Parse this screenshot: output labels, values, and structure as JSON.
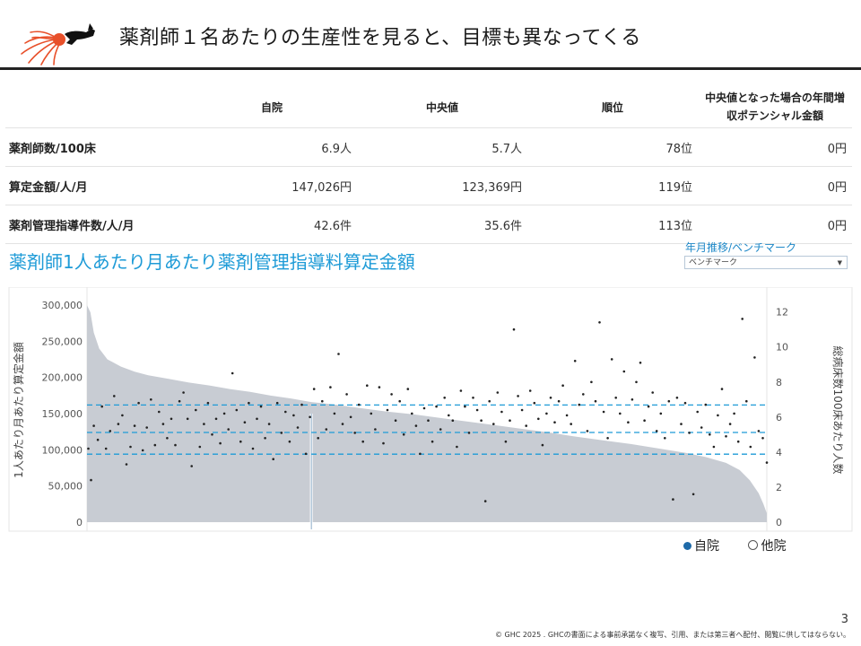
{
  "header": {
    "title": "薬剤師１名あたりの生産性を見ると、目標も異なってくる",
    "logo_icon": "dog-with-yarn-logo"
  },
  "table": {
    "columns": [
      "",
      "自院",
      "中央値",
      "順位",
      "中央値となった場合の年間増",
      "収ポテンシャル金額"
    ],
    "rows": [
      {
        "label": "薬剤師数/100床",
        "self": "6.9人",
        "median": "5.7人",
        "rank": "78位",
        "potential": "0円"
      },
      {
        "label": "算定金額/人/月",
        "self": "147,026円",
        "median": "123,369円",
        "rank": "119位",
        "potential": "0円"
      },
      {
        "label": "薬剤管理指導件数/人/月",
        "self": "42.6件",
        "median": "35.6件",
        "rank": "113位",
        "potential": "0円"
      }
    ]
  },
  "chart_title": "薬剤師1人あたり月あたり薬剤管理指導料算定金額",
  "selector": {
    "label": "年月推移/ベンチマーク",
    "value": "ベンチマーク"
  },
  "chart_data": {
    "type": "scatter",
    "ylabel": "1人あたり月あたり算定金額",
    "y2label": "総病床数100床あたり人数",
    "ylim": [
      0,
      310000
    ],
    "y2lim": [
      0,
      12.8
    ],
    "yticks": [
      "300,000",
      "250,000",
      "200,000",
      "150,000",
      "100,000",
      "50,000",
      "0"
    ],
    "y2ticks": [
      "12",
      "10",
      "8",
      "6",
      "4",
      "2",
      "0"
    ],
    "reference_lines": [
      162000,
      124000,
      94000
    ],
    "area_profile": [
      [
        0,
        300000
      ],
      [
        0.5,
        290000
      ],
      [
        1,
        262000
      ],
      [
        1.8,
        240000
      ],
      [
        3,
        225000
      ],
      [
        5,
        215000
      ],
      [
        7,
        208000
      ],
      [
        9,
        203000
      ],
      [
        12,
        198000
      ],
      [
        15,
        193000
      ],
      [
        18,
        189000
      ],
      [
        21,
        184000
      ],
      [
        24,
        180000
      ],
      [
        27,
        175000
      ],
      [
        30,
        171000
      ],
      [
        33,
        166000
      ],
      [
        36,
        163000
      ],
      [
        40,
        158000
      ],
      [
        44,
        153000
      ],
      [
        48,
        149000
      ],
      [
        52,
        144000
      ],
      [
        56,
        139000
      ],
      [
        60,
        134000
      ],
      [
        64,
        129000
      ],
      [
        68,
        124000
      ],
      [
        72,
        118000
      ],
      [
        76,
        113000
      ],
      [
        80,
        108000
      ],
      [
        84,
        102000
      ],
      [
        88,
        96000
      ],
      [
        91,
        90000
      ],
      [
        94,
        82000
      ],
      [
        96,
        72000
      ],
      [
        97.5,
        58000
      ],
      [
        98.8,
        40000
      ],
      [
        99.5,
        25000
      ],
      [
        100,
        12000
      ]
    ],
    "highlight_x": 33,
    "self_label": "自院",
    "other_label": "他院",
    "points_y2": [
      [
        0.2,
        4.2
      ],
      [
        0.6,
        2.4
      ],
      [
        1,
        5.5
      ],
      [
        1.6,
        4.7
      ],
      [
        2.2,
        6.6
      ],
      [
        2.8,
        4.2
      ],
      [
        3.4,
        5.2
      ],
      [
        4,
        7.2
      ],
      [
        4.6,
        5.6
      ],
      [
        5.2,
        6.1
      ],
      [
        5.8,
        3.3
      ],
      [
        6.4,
        4.3
      ],
      [
        7,
        5.5
      ],
      [
        7.6,
        6.8
      ],
      [
        8.2,
        4.1
      ],
      [
        8.8,
        5.4
      ],
      [
        9.4,
        7.0
      ],
      [
        10,
        4.4
      ],
      [
        10.6,
        6.3
      ],
      [
        11.2,
        5.6
      ],
      [
        11.8,
        4.8
      ],
      [
        12.4,
        5.9
      ],
      [
        13,
        4.4
      ],
      [
        13.6,
        6.9
      ],
      [
        14.2,
        7.4
      ],
      [
        14.8,
        5.9
      ],
      [
        15.4,
        3.2
      ],
      [
        16,
        6.4
      ],
      [
        16.6,
        4.3
      ],
      [
        17.2,
        5.6
      ],
      [
        17.8,
        6.8
      ],
      [
        18.4,
        5.0
      ],
      [
        19,
        5.9
      ],
      [
        19.6,
        4.5
      ],
      [
        20.2,
        6.2
      ],
      [
        20.8,
        5.3
      ],
      [
        21.4,
        8.5
      ],
      [
        22,
        6.4
      ],
      [
        22.6,
        4.6
      ],
      [
        23.2,
        5.7
      ],
      [
        23.8,
        6.8
      ],
      [
        24.4,
        4.2
      ],
      [
        25,
        5.9
      ],
      [
        25.6,
        6.6
      ],
      [
        26.2,
        4.8
      ],
      [
        26.8,
        5.6
      ],
      [
        27.4,
        3.6
      ],
      [
        28,
        6.8
      ],
      [
        28.6,
        5.1
      ],
      [
        29.2,
        6.3
      ],
      [
        29.8,
        4.6
      ],
      [
        30.4,
        6.1
      ],
      [
        31,
        5.4
      ],
      [
        31.6,
        6.7
      ],
      [
        32.2,
        3.9
      ],
      [
        32.8,
        6.0
      ],
      [
        33.4,
        7.6
      ],
      [
        34,
        4.8
      ],
      [
        34.6,
        6.9
      ],
      [
        35.2,
        5.3
      ],
      [
        35.8,
        7.7
      ],
      [
        36.4,
        6.2
      ],
      [
        37,
        9.6
      ],
      [
        37.6,
        5.6
      ],
      [
        38.2,
        7.3
      ],
      [
        38.8,
        6.0
      ],
      [
        39.4,
        5.1
      ],
      [
        40,
        6.7
      ],
      [
        40.6,
        4.6
      ],
      [
        41.2,
        7.8
      ],
      [
        41.8,
        6.2
      ],
      [
        42.4,
        5.3
      ],
      [
        43,
        7.7
      ],
      [
        43.6,
        4.5
      ],
      [
        44.2,
        6.4
      ],
      [
        44.8,
        7.3
      ],
      [
        45.4,
        5.8
      ],
      [
        46,
        6.9
      ],
      [
        46.6,
        5.0
      ],
      [
        47.2,
        7.6
      ],
      [
        47.8,
        6.2
      ],
      [
        48.4,
        5.5
      ],
      [
        49,
        3.9
      ],
      [
        49.6,
        6.5
      ],
      [
        50.2,
        5.8
      ],
      [
        50.8,
        4.6
      ],
      [
        51.4,
        6.6
      ],
      [
        52,
        5.3
      ],
      [
        52.6,
        7.1
      ],
      [
        53.2,
        6.1
      ],
      [
        53.8,
        5.8
      ],
      [
        54.4,
        4.3
      ],
      [
        55,
        7.5
      ],
      [
        55.6,
        6.6
      ],
      [
        56.2,
        5.1
      ],
      [
        56.8,
        7.1
      ],
      [
        57.4,
        6.4
      ],
      [
        58,
        5.8
      ],
      [
        58.6,
        1.2
      ],
      [
        59.2,
        6.9
      ],
      [
        59.8,
        5.6
      ],
      [
        60.4,
        7.4
      ],
      [
        61,
        6.3
      ],
      [
        61.6,
        4.6
      ],
      [
        62.2,
        5.8
      ],
      [
        62.8,
        11.0
      ],
      [
        63.4,
        7.2
      ],
      [
        64,
        6.4
      ],
      [
        64.6,
        5.5
      ],
      [
        65.2,
        7.5
      ],
      [
        65.8,
        6.8
      ],
      [
        66.4,
        5.9
      ],
      [
        67,
        4.4
      ],
      [
        67.6,
        6.2
      ],
      [
        68.2,
        7.1
      ],
      [
        68.8,
        5.7
      ],
      [
        69.4,
        6.9
      ],
      [
        70,
        7.8
      ],
      [
        70.6,
        6.1
      ],
      [
        71.2,
        5.6
      ],
      [
        71.8,
        9.2
      ],
      [
        72.4,
        6.7
      ],
      [
        73,
        7.3
      ],
      [
        73.6,
        5.2
      ],
      [
        74.2,
        8.0
      ],
      [
        74.8,
        6.9
      ],
      [
        75.4,
        11.4
      ],
      [
        76,
        6.3
      ],
      [
        76.6,
        4.8
      ],
      [
        77.2,
        9.3
      ],
      [
        77.8,
        7.1
      ],
      [
        78.4,
        6.2
      ],
      [
        79,
        8.6
      ],
      [
        79.6,
        5.7
      ],
      [
        80.2,
        7.0
      ],
      [
        80.8,
        8.0
      ],
      [
        81.4,
        9.1
      ],
      [
        82,
        5.8
      ],
      [
        82.6,
        6.6
      ],
      [
        83.2,
        7.4
      ],
      [
        83.8,
        5.2
      ],
      [
        84.4,
        6.2
      ],
      [
        85,
        4.8
      ],
      [
        85.6,
        6.9
      ],
      [
        86.2,
        1.3
      ],
      [
        86.8,
        7.1
      ],
      [
        87.4,
        5.6
      ],
      [
        88,
        6.8
      ],
      [
        88.6,
        5.1
      ],
      [
        89.2,
        1.6
      ],
      [
        89.8,
        6.3
      ],
      [
        90.4,
        5.4
      ],
      [
        91,
        6.7
      ],
      [
        91.6,
        5.0
      ],
      [
        92.2,
        4.3
      ],
      [
        92.8,
        6.1
      ],
      [
        93.4,
        7.6
      ],
      [
        94,
        4.9
      ],
      [
        94.6,
        5.6
      ],
      [
        95.2,
        6.2
      ],
      [
        95.8,
        4.6
      ],
      [
        96.4,
        11.6
      ],
      [
        97,
        6.9
      ],
      [
        97.6,
        4.3
      ],
      [
        98.2,
        9.4
      ],
      [
        98.8,
        5.2
      ],
      [
        99.4,
        4.8
      ],
      [
        100,
        3.4
      ]
    ]
  },
  "page_number": "3",
  "footer": "© GHC 2025 . GHCの書面による事前承諾なく複写、引用、または第三者へ配付、閲覧に供してはならない。"
}
